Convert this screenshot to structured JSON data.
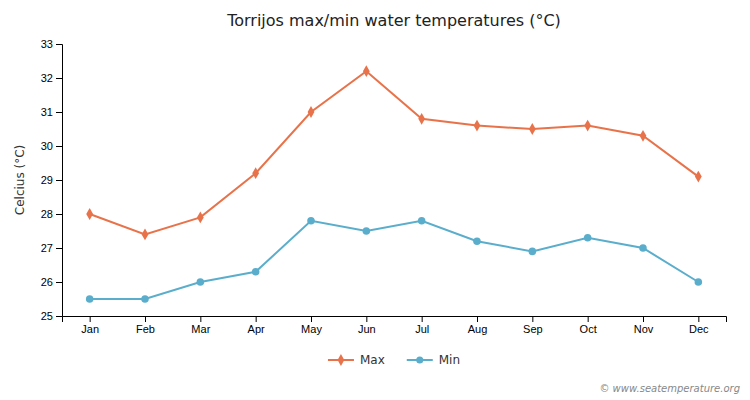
{
  "chart_data": {
    "type": "line",
    "title": "Torrijos max/min water temperatures (°C)",
    "ylabel": "Celcius (°C)",
    "categories": [
      "Jan",
      "Feb",
      "Mar",
      "Apr",
      "May",
      "Jun",
      "Jul",
      "Aug",
      "Sep",
      "Oct",
      "Nov",
      "Dec"
    ],
    "series": [
      {
        "name": "Max",
        "color": "#e8734a",
        "marker": "diamond",
        "line_style": "solid",
        "values": [
          28.0,
          27.4,
          27.9,
          29.2,
          31.0,
          32.2,
          30.8,
          30.6,
          30.5,
          30.6,
          30.3,
          29.1
        ]
      },
      {
        "name": "Min",
        "color": "#5aaecc",
        "marker": "circle",
        "line_style": "solid",
        "values": [
          25.5,
          25.5,
          26.0,
          26.3,
          27.8,
          27.5,
          27.8,
          27.2,
          26.9,
          27.3,
          27.0,
          26.0
        ]
      }
    ],
    "ylim": [
      25,
      33
    ],
    "yticks": [
      25,
      26,
      27,
      28,
      29,
      30,
      31,
      32,
      33
    ],
    "grid": false,
    "legend": "bottom",
    "annotations": [
      "© www.seatemperature.org"
    ]
  }
}
